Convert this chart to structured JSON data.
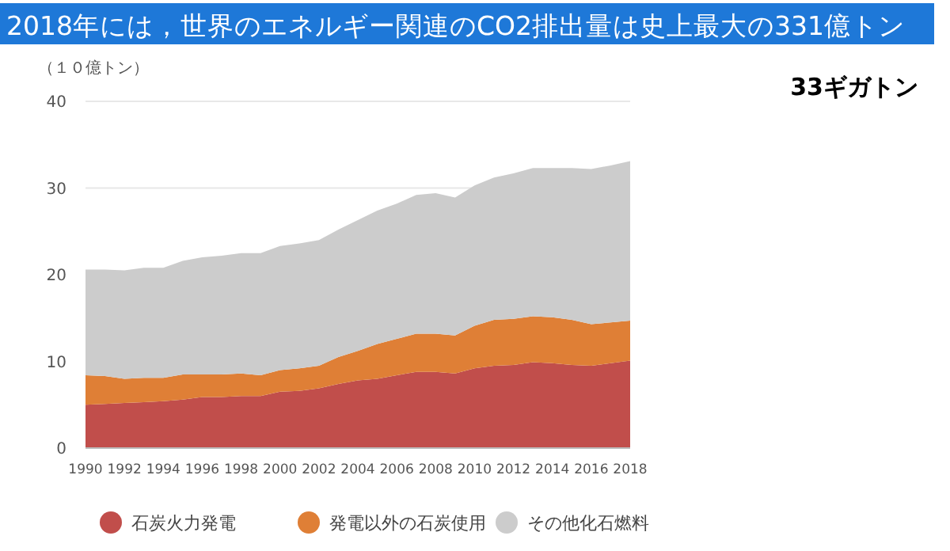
{
  "chart_data": {
    "type": "area",
    "stacked": true,
    "title": "2018年には，世界のエネルギー関連のCO2排出量は史上最大の331億トン",
    "ylabel": "（１０億トン）",
    "annotations": [
      "33ギガトン"
    ],
    "x": [
      1990,
      1991,
      1992,
      1993,
      1994,
      1995,
      1996,
      1997,
      1998,
      1999,
      2000,
      2001,
      2002,
      2003,
      2004,
      2005,
      2006,
      2007,
      2008,
      2009,
      2010,
      2011,
      2012,
      2013,
      2014,
      2015,
      2016,
      2017,
      2018
    ],
    "series": [
      {
        "name": "石炭火力発電",
        "color": "#c14e4b",
        "values": [
          5.0,
          5.1,
          5.2,
          5.3,
          5.4,
          5.6,
          5.9,
          5.9,
          6.0,
          6.0,
          6.5,
          6.6,
          6.9,
          7.4,
          7.8,
          8.0,
          8.4,
          8.8,
          8.8,
          8.6,
          9.2,
          9.5,
          9.6,
          9.9,
          9.8,
          9.6,
          9.5,
          9.8,
          10.1
        ]
      },
      {
        "name": "発電以外の石炭使用",
        "color": "#df7f36",
        "values": [
          3.4,
          3.2,
          2.8,
          2.8,
          2.7,
          2.9,
          2.6,
          2.6,
          2.6,
          2.4,
          2.5,
          2.6,
          2.6,
          3.1,
          3.4,
          4.0,
          4.2,
          4.4,
          4.4,
          4.4,
          4.9,
          5.3,
          5.3,
          5.3,
          5.3,
          5.2,
          4.8,
          4.7,
          4.6
        ]
      },
      {
        "name": "その他化石燃料",
        "color": "#cccccc",
        "values": [
          12.2,
          12.3,
          12.5,
          12.7,
          12.7,
          13.1,
          13.5,
          13.7,
          13.9,
          14.1,
          14.3,
          14.4,
          14.5,
          14.7,
          15.1,
          15.4,
          15.6,
          16.0,
          16.2,
          15.9,
          16.2,
          16.4,
          16.8,
          17.1,
          17.2,
          17.5,
          17.9,
          18.1,
          18.4
        ]
      }
    ],
    "xlim": [
      1990,
      2018
    ],
    "xticks": [
      1990,
      1992,
      1994,
      1996,
      1998,
      2000,
      2002,
      2004,
      2006,
      2008,
      2010,
      2012,
      2014,
      2016,
      2018
    ],
    "ylim": [
      0,
      40
    ],
    "yticks": [
      0,
      10,
      20,
      30,
      40
    ],
    "grid": "y",
    "legend": "bottom"
  }
}
